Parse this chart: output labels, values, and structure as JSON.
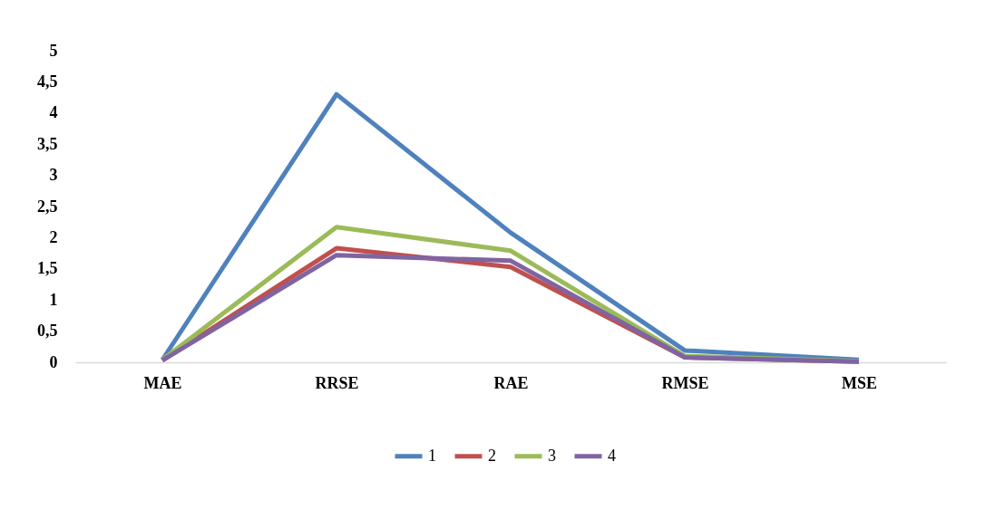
{
  "chart_data": {
    "type": "line",
    "categories": [
      "MAE",
      "RRSE",
      "RAE",
      "RMSE",
      "MSE"
    ],
    "series": [
      {
        "name": "1",
        "color": "#4f81bd",
        "values": [
          0.04,
          4.3,
          2.08,
          0.19,
          0.04
        ]
      },
      {
        "name": "2",
        "color": "#c0504d",
        "values": [
          0.03,
          1.83,
          1.53,
          0.08,
          0.01
        ]
      },
      {
        "name": "3",
        "color": "#9bbb59",
        "values": [
          0.04,
          2.17,
          1.79,
          0.1,
          0.02
        ]
      },
      {
        "name": "4",
        "color": "#8064a2",
        "values": [
          0.03,
          1.72,
          1.63,
          0.08,
          0.01
        ]
      }
    ],
    "ylim": [
      0,
      5
    ],
    "yticks": [
      0,
      {
        "value": 0.5,
        "label": "0,5"
      },
      1,
      {
        "value": 1.5,
        "label": "1,5"
      },
      2,
      {
        "value": 2.5,
        "label": "2,5"
      },
      3,
      {
        "value": 3.5,
        "label": "3,5"
      },
      4,
      {
        "value": 4.5,
        "label": "4,5"
      },
      5
    ],
    "grid": false,
    "legend": "bottom",
    "marker": "none",
    "line_style": "solid"
  }
}
